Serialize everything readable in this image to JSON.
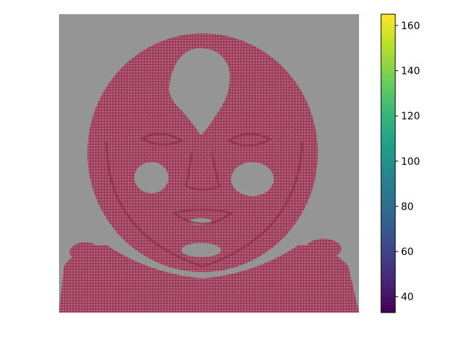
{
  "chart_data": {
    "type": "heatmap",
    "title": "",
    "xlabel": "",
    "ylabel": "",
    "axes_visible": false,
    "image_description": "masked pixel image of a face; magenta/red pixels on gray background",
    "background_color": "#959595",
    "pixel_color": "#a0405e",
    "colorbar": {
      "cmap": "viridis",
      "range": [
        33,
        165
      ],
      "ticks": [
        40,
        60,
        80,
        100,
        120,
        140,
        160
      ],
      "tick_labels": [
        "40",
        "60",
        "80",
        "100",
        "120",
        "140",
        "160"
      ],
      "stops": [
        "#440154",
        "#482878",
        "#3e4989",
        "#31688e",
        "#26828e",
        "#1f9e89",
        "#35b779",
        "#6ece58",
        "#b5de2b",
        "#fde725"
      ]
    }
  }
}
